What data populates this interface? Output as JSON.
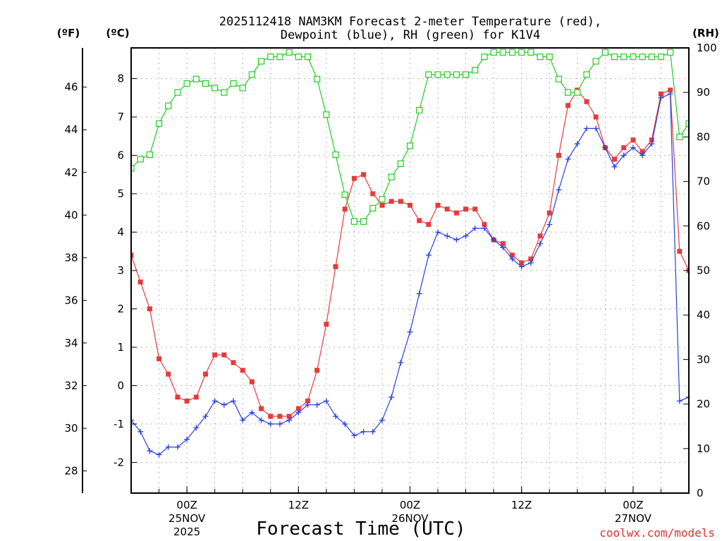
{
  "chart_data": {
    "type": "line",
    "title": "2025112418 NAM3KM Forecast 2-meter Temperature (red),",
    "subtitle": "Dewpoint (blue), RH (green) for K1V4",
    "xlabel": "Forecast Time (UTC)",
    "credit": "coolwx.com/models",
    "units": {
      "fahrenheit": "(ºF)",
      "celsius": "(ºC)",
      "rh": "(RH)"
    },
    "x_range_hours": [
      18,
      78
    ],
    "celsius_range": [
      -2.8,
      8.8
    ],
    "rh_range": [
      0,
      100
    ],
    "fahrenheit_ticks": [
      "28",
      "30",
      "32",
      "34",
      "36",
      "38",
      "40",
      "42",
      "44",
      "46"
    ],
    "celsius_ticks": [
      "-2",
      "-1",
      "0",
      "1",
      "2",
      "3",
      "4",
      "5",
      "6",
      "7",
      "8"
    ],
    "rh_ticks": [
      "0",
      "10",
      "20",
      "30",
      "40",
      "50",
      "60",
      "70",
      "80",
      "90",
      "100"
    ],
    "x_ticks": [
      {
        "hour": 24,
        "time": "00Z",
        "date": "25NOV",
        "year": "2025"
      },
      {
        "hour": 36,
        "time": "12Z",
        "date": "",
        "year": ""
      },
      {
        "hour": 48,
        "time": "00Z",
        "date": "26NOV",
        "year": ""
      },
      {
        "hour": 60,
        "time": "12Z",
        "date": "",
        "year": ""
      },
      {
        "hour": 72,
        "time": "00Z",
        "date": "27NOV",
        "year": ""
      }
    ],
    "hours": [
      18,
      19,
      20,
      21,
      22,
      23,
      24,
      25,
      26,
      27,
      28,
      29,
      30,
      31,
      32,
      33,
      34,
      35,
      36,
      37,
      38,
      39,
      40,
      41,
      42,
      43,
      44,
      45,
      46,
      47,
      48,
      49,
      50,
      51,
      52,
      53,
      54,
      55,
      56,
      57,
      58,
      59,
      60,
      61,
      62,
      63,
      64,
      65,
      66,
      67,
      68,
      69,
      70,
      71,
      72,
      73,
      74,
      75,
      76,
      77,
      78
    ],
    "series": [
      {
        "name": "Temperature",
        "unit": "°C",
        "color": "#e83a3a",
        "marker": "square",
        "values": [
          3.4,
          2.7,
          2.0,
          0.7,
          0.3,
          -0.3,
          -0.4,
          -0.3,
          0.3,
          0.8,
          0.8,
          0.6,
          0.4,
          0.1,
          -0.6,
          -0.8,
          -0.8,
          -0.8,
          -0.6,
          -0.4,
          0.4,
          1.6,
          3.1,
          4.6,
          5.4,
          5.5,
          5.0,
          4.7,
          4.8,
          4.8,
          4.7,
          4.3,
          4.2,
          4.7,
          4.6,
          4.5,
          4.6,
          4.6,
          4.2,
          3.8,
          3.7,
          3.4,
          3.2,
          3.3,
          3.9,
          4.5,
          6.0,
          7.3,
          7.7,
          7.4,
          7.0,
          6.2,
          5.9,
          6.2,
          6.4,
          6.1,
          6.4,
          7.6,
          7.7,
          3.5,
          3.0
        ]
      },
      {
        "name": "Dewpoint",
        "unit": "°C",
        "color": "#2840e0",
        "marker": "plus",
        "values": [
          -0.9,
          -1.2,
          -1.7,
          -1.8,
          -1.6,
          -1.6,
          -1.4,
          -1.1,
          -0.8,
          -0.4,
          -0.5,
          -0.4,
          -0.9,
          -0.7,
          -0.9,
          -1.0,
          -1.0,
          -0.9,
          -0.7,
          -0.5,
          -0.5,
          -0.4,
          -0.8,
          -1.0,
          -1.3,
          -1.2,
          -1.2,
          -0.9,
          -0.3,
          0.6,
          1.4,
          2.4,
          3.4,
          4.0,
          3.9,
          3.8,
          3.9,
          4.1,
          4.1,
          3.8,
          3.6,
          3.3,
          3.1,
          3.2,
          3.7,
          4.2,
          5.1,
          5.9,
          6.3,
          6.7,
          6.7,
          6.2,
          5.7,
          6.0,
          6.2,
          6.0,
          6.3,
          7.5,
          7.6,
          -0.4,
          -0.3
        ]
      },
      {
        "name": "RH",
        "unit": "%",
        "color": "#22cc22",
        "marker": "hollow-square",
        "values": [
          73,
          75,
          76,
          83,
          87,
          90,
          92,
          93,
          92,
          91,
          90,
          92,
          91,
          94,
          97,
          98,
          98,
          99,
          98,
          98,
          93,
          85,
          76,
          67,
          61,
          61,
          64,
          66,
          71,
          74,
          78,
          86,
          94,
          94,
          94,
          94,
          94,
          95,
          98,
          99,
          99,
          99,
          99,
          99,
          98,
          98,
          93,
          90,
          90,
          94,
          97,
          99,
          98,
          98,
          98,
          98,
          98,
          98,
          99,
          80,
          83
        ]
      }
    ]
  }
}
